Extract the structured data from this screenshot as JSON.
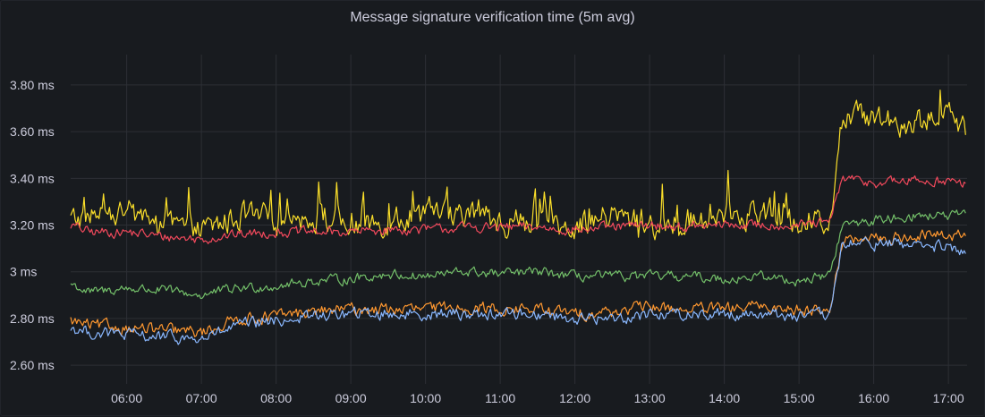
{
  "panel": {
    "title": "Message signature verification time (5m avg)"
  },
  "chart_data": {
    "type": "line",
    "title": "Message signature verification time (5m avg)",
    "xlabel": "",
    "ylabel": "",
    "y_unit": "ms",
    "ylim": [
      2.52,
      3.93
    ],
    "y_ticks": [
      {
        "value": 2.6,
        "label": "2.60 ms"
      },
      {
        "value": 2.8,
        "label": "2.80 ms"
      },
      {
        "value": 3.0,
        "label": "3 ms"
      },
      {
        "value": 3.2,
        "label": "3.20 ms"
      },
      {
        "value": 3.4,
        "label": "3.40 ms"
      },
      {
        "value": 3.6,
        "label": "3.60 ms"
      },
      {
        "value": 3.8,
        "label": "3.80 ms"
      }
    ],
    "x_time_range": [
      "05:15",
      "17:15"
    ],
    "x_ticks": [
      "06:00",
      "07:00",
      "08:00",
      "09:00",
      "10:00",
      "11:00",
      "12:00",
      "13:00",
      "14:00",
      "15:00",
      "16:00",
      "17:00"
    ],
    "grid": true,
    "legend": "none",
    "x": [
      "05:15",
      "05:30",
      "06:00",
      "06:30",
      "07:00",
      "07:30",
      "08:00",
      "08:30",
      "09:00",
      "09:30",
      "10:00",
      "10:30",
      "11:00",
      "11:30",
      "12:00",
      "12:30",
      "13:00",
      "13:30",
      "14:00",
      "14:30",
      "15:00",
      "15:25",
      "15:30",
      "15:35",
      "16:00",
      "16:30",
      "17:00",
      "17:15"
    ],
    "series": [
      {
        "color": "#fade2a",
        "values": [
          3.22,
          3.24,
          3.25,
          3.2,
          3.17,
          3.24,
          3.22,
          3.24,
          3.2,
          3.22,
          3.25,
          3.26,
          3.21,
          3.22,
          3.2,
          3.24,
          3.2,
          3.21,
          3.24,
          3.26,
          3.22,
          3.23,
          3.48,
          3.65,
          3.67,
          3.64,
          3.66,
          3.6
        ]
      },
      {
        "color": "#f2495c",
        "values": [
          3.2,
          3.17,
          3.17,
          3.15,
          3.14,
          3.16,
          3.17,
          3.17,
          3.17,
          3.18,
          3.18,
          3.19,
          3.19,
          3.19,
          3.18,
          3.19,
          3.2,
          3.19,
          3.2,
          3.2,
          3.2,
          3.21,
          3.32,
          3.4,
          3.38,
          3.39,
          3.39,
          3.37
        ]
      },
      {
        "color": "#73bf69",
        "values": [
          2.95,
          2.91,
          2.93,
          2.92,
          2.9,
          2.93,
          2.94,
          2.96,
          2.97,
          2.99,
          2.98,
          3.0,
          2.99,
          3.0,
          2.98,
          2.98,
          2.98,
          2.98,
          2.97,
          2.98,
          2.96,
          2.99,
          3.1,
          3.2,
          3.22,
          3.24,
          3.24,
          3.24
        ]
      },
      {
        "color": "#ff9830",
        "values": [
          2.79,
          2.77,
          2.76,
          2.75,
          2.74,
          2.8,
          2.81,
          2.83,
          2.84,
          2.84,
          2.84,
          2.85,
          2.84,
          2.84,
          2.82,
          2.83,
          2.85,
          2.84,
          2.84,
          2.85,
          2.84,
          2.84,
          3.0,
          3.13,
          3.14,
          3.15,
          3.16,
          3.15
        ]
      },
      {
        "color": "#8ab8ff",
        "values": [
          2.76,
          2.74,
          2.73,
          2.72,
          2.71,
          2.77,
          2.79,
          2.81,
          2.82,
          2.82,
          2.82,
          2.82,
          2.82,
          2.82,
          2.8,
          2.8,
          2.82,
          2.82,
          2.82,
          2.82,
          2.81,
          2.81,
          2.98,
          3.12,
          3.12,
          3.12,
          3.1,
          3.08
        ]
      }
    ]
  }
}
